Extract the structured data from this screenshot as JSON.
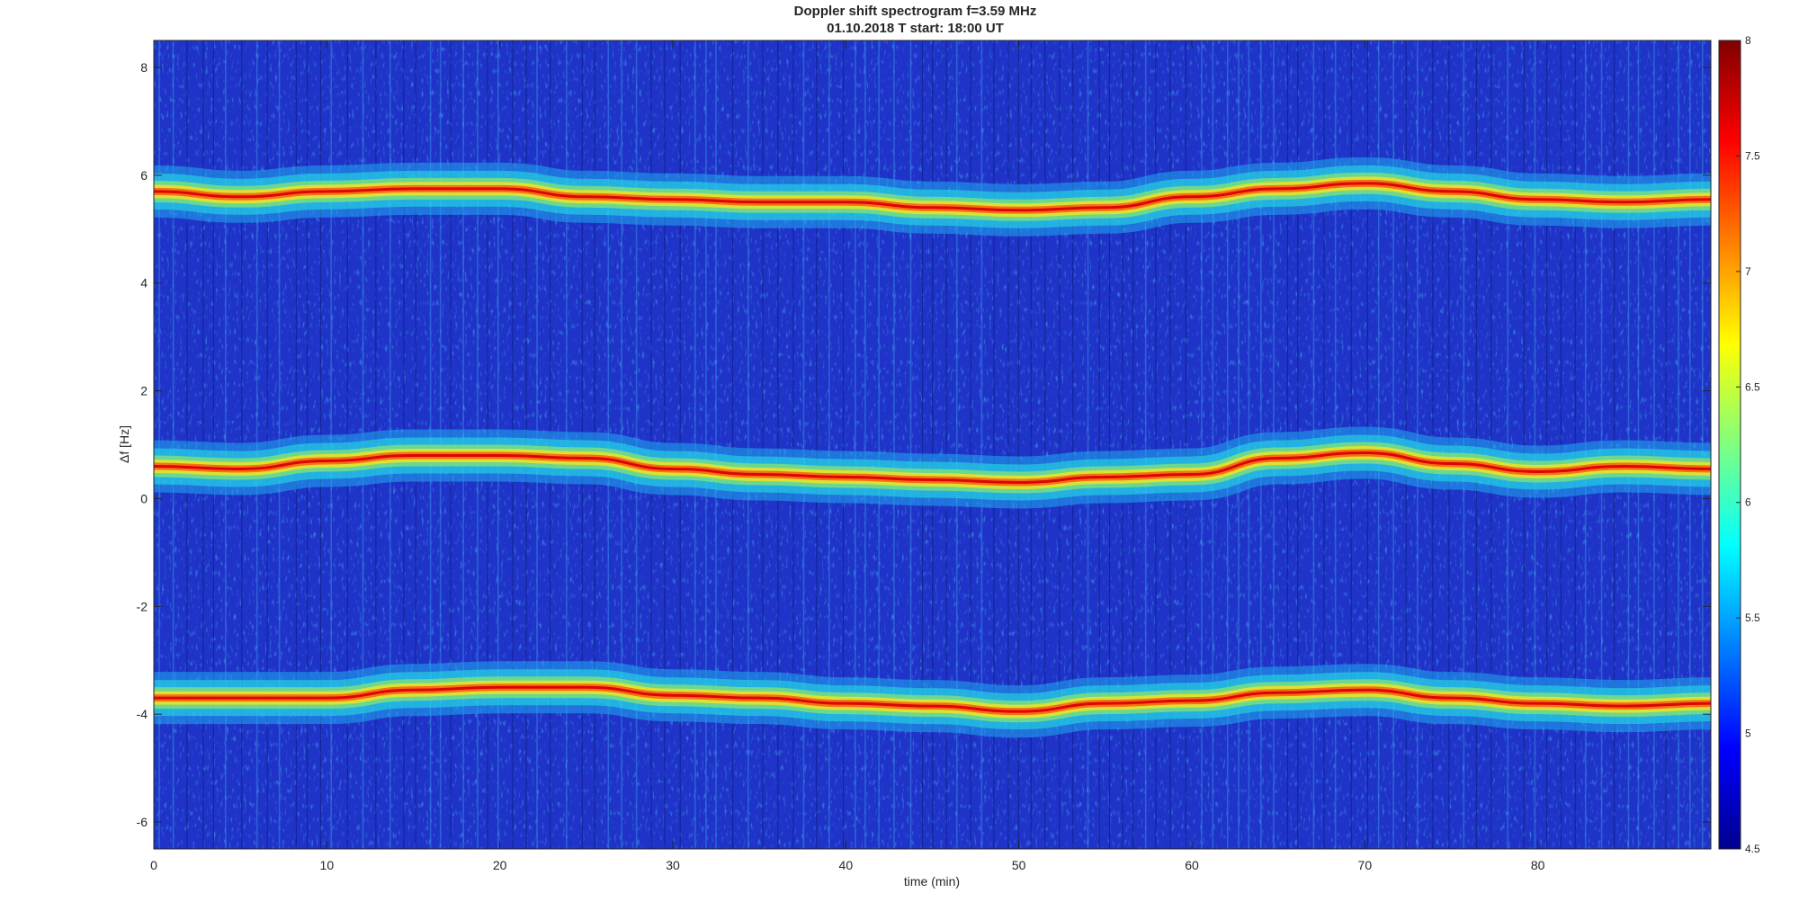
{
  "chart_data": {
    "type": "heatmap",
    "title": "Doppler shift spectrogram f=3.59 MHz",
    "subtitle": "01.10.2018   T start: 18:00 UT",
    "xlabel": "time (min)",
    "ylabel": "Δf [Hz]",
    "xlim": [
      0,
      90
    ],
    "ylim": [
      -6.5,
      8.5
    ],
    "x_ticks": [
      "0",
      "10",
      "20",
      "30",
      "40",
      "50",
      "60",
      "70",
      "80"
    ],
    "y_ticks": [
      "-6",
      "-4",
      "-2",
      "0",
      "2",
      "4",
      "6",
      "8"
    ],
    "colorbar": {
      "min": 4.5,
      "max": 8,
      "ticks": [
        "4.5",
        "5",
        "5.5",
        "6",
        "6.5",
        "7",
        "7.5",
        "8"
      ],
      "colormap": "jet"
    },
    "traces": [
      {
        "t": [
          0,
          5,
          10,
          15,
          20,
          25,
          30,
          35,
          40,
          45,
          50,
          55,
          60,
          65,
          70,
          75,
          80,
          85,
          90
        ],
        "df": [
          5.7,
          5.6,
          5.7,
          5.75,
          5.75,
          5.6,
          5.55,
          5.5,
          5.5,
          5.4,
          5.35,
          5.4,
          5.6,
          5.75,
          5.85,
          5.7,
          5.55,
          5.5,
          5.55
        ]
      },
      {
        "t": [
          0,
          5,
          10,
          15,
          20,
          25,
          30,
          35,
          40,
          45,
          50,
          55,
          60,
          65,
          70,
          75,
          80,
          85,
          90
        ],
        "df": [
          0.6,
          0.55,
          0.7,
          0.8,
          0.8,
          0.75,
          0.55,
          0.45,
          0.4,
          0.35,
          0.3,
          0.4,
          0.45,
          0.75,
          0.85,
          0.65,
          0.5,
          0.6,
          0.55
        ]
      },
      {
        "t": [
          0,
          5,
          10,
          15,
          20,
          25,
          30,
          35,
          40,
          45,
          50,
          55,
          60,
          65,
          70,
          75,
          80,
          85,
          90
        ],
        "df": [
          -3.7,
          -3.7,
          -3.7,
          -3.55,
          -3.5,
          -3.5,
          -3.65,
          -3.7,
          -3.8,
          -3.85,
          -3.95,
          -3.8,
          -3.75,
          -3.6,
          -3.55,
          -3.7,
          -3.8,
          -3.85,
          -3.8
        ]
      }
    ]
  }
}
